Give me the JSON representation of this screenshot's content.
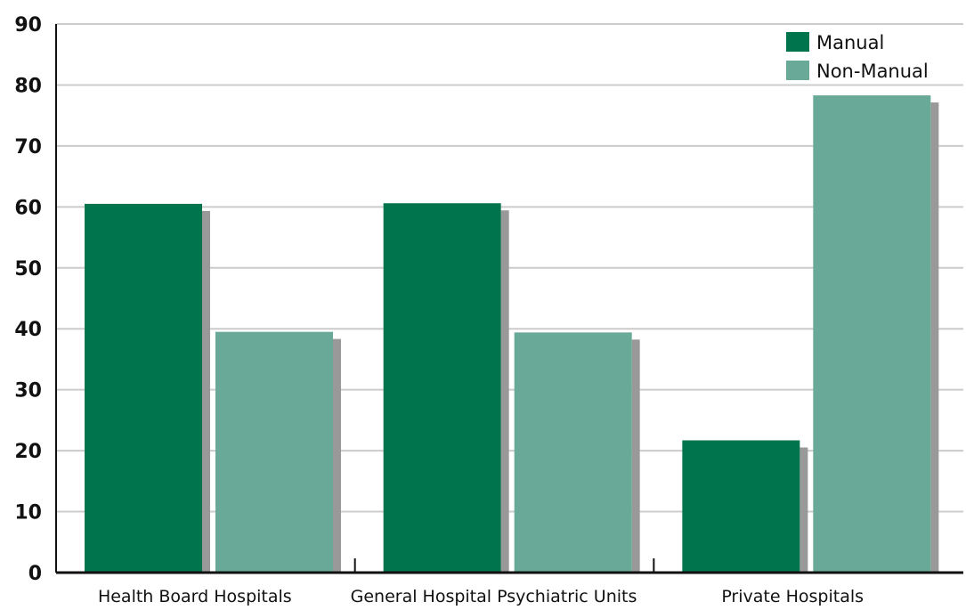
{
  "chart_data": {
    "type": "bar",
    "title": "",
    "xlabel": "",
    "ylabel": "",
    "categories": [
      "Health Board Hospitals",
      "General Hospital Psychiatric Units",
      "Private Hospitals"
    ],
    "series": [
      {
        "name": "Manual",
        "values": [
          60.5,
          60.6,
          21.7
        ],
        "color": "#00744c"
      },
      {
        "name": "Non-Manual",
        "values": [
          39.5,
          39.4,
          78.3
        ],
        "color": "#68aa97"
      }
    ],
    "ylim": [
      0,
      90
    ],
    "yticks": [
      "0",
      "10",
      "20",
      "30",
      "40",
      "50",
      "60",
      "70",
      "80",
      "90"
    ],
    "grid": true,
    "legend_position": "top-right",
    "shadow_color": "#999999",
    "grid_color": "#cccccc"
  }
}
